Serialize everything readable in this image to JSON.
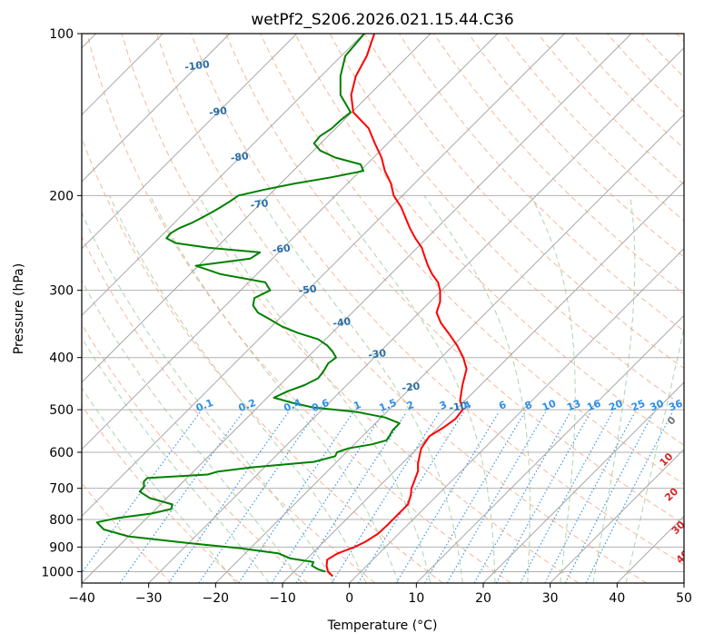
{
  "chart_data": {
    "type": "line",
    "title": "wetPf2_S206.2026.021.15.44.C36",
    "xlabel": "Temperature (°C)",
    "ylabel": "Pressure (hPa)",
    "xlim": [
      -40,
      50
    ],
    "ylim": [
      1050,
      100
    ],
    "y_scale": "log",
    "skew_t": true,
    "grid": true,
    "x_ticks": [
      -40,
      -30,
      -20,
      -10,
      0,
      10,
      20,
      30,
      40,
      50
    ],
    "y_ticks": [
      1000,
      900,
      800,
      700,
      600,
      500,
      400,
      300,
      200,
      100
    ],
    "isotherm_labels": [
      -100,
      -90,
      -80,
      -70,
      -60,
      -50,
      -40,
      -30,
      -20,
      -10
    ],
    "isotherm_label_pressure": [
      115,
      140,
      170,
      208,
      252,
      300,
      345,
      395,
      455,
      495
    ],
    "dry_adiabat_labels": [
      0,
      10,
      20,
      30,
      40
    ],
    "dry_adiabat_label_temps": [
      24,
      29,
      35,
      41,
      46
    ],
    "dry_adiabat_label_pressure": [
      525,
      620,
      720,
      830,
      940
    ],
    "mixing_ratio_labels": [
      "0.1",
      "0.2",
      "0.4",
      "0.6",
      "1",
      "1.5",
      "2",
      "3",
      "4",
      "6",
      "8",
      "10",
      "13",
      "16",
      "20",
      "25",
      "30",
      "36"
    ],
    "mixing_ratio_values": [
      0.1,
      0.2,
      0.4,
      0.6,
      1,
      1.5,
      2,
      3,
      4,
      6,
      8,
      10,
      13,
      16,
      20,
      25,
      30,
      36
    ],
    "series": [
      {
        "color": "#ff0000",
        "p": [
          1020,
          1000,
          975,
          950,
          925,
          900,
          880,
          850,
          820,
          800,
          780,
          750,
          720,
          700,
          680,
          650,
          630,
          610,
          590,
          560,
          540,
          520,
          500,
          480,
          450,
          420,
          400,
          380,
          360,
          345,
          330,
          315,
          300,
          290,
          280,
          270,
          260,
          250,
          240,
          230,
          220,
          210,
          200,
          190,
          180,
          170,
          160,
          150,
          140,
          130,
          120,
          110,
          100
        ],
        "t": [
          -3.5,
          -4.9,
          -6.0,
          -6.8,
          -6.2,
          -4.6,
          -3.8,
          -3.1,
          -3.0,
          -3.0,
          -3.0,
          -3.0,
          -4.0,
          -4.9,
          -5.5,
          -6.5,
          -7.6,
          -8.5,
          -9.4,
          -10.0,
          -9.2,
          -8.7,
          -9.0,
          -10.8,
          -12.7,
          -14.5,
          -16.7,
          -19.4,
          -22.6,
          -25.2,
          -27.4,
          -28.5,
          -30.2,
          -31.7,
          -33.8,
          -35.7,
          -37.5,
          -39.3,
          -41.7,
          -44.0,
          -46.2,
          -48.5,
          -51.3,
          -53.5,
          -56.3,
          -58.8,
          -61.9,
          -65.1,
          -69.8,
          -72.7,
          -74.8,
          -76.2,
          -78.4
        ]
      },
      {
        "color": "#008000",
        "p": [
          1000,
          990,
          975,
          960,
          945,
          925,
          905,
          885,
          860,
          835,
          810,
          795,
          780,
          765,
          750,
          730,
          710,
          695,
          680,
          670,
          660,
          652,
          640,
          625,
          610,
          600,
          590,
          580,
          570,
          560,
          545,
          530,
          517,
          505,
          495,
          485,
          475,
          462,
          450,
          437,
          425,
          410,
          400,
          390,
          380,
          370,
          360,
          350,
          340,
          330,
          320,
          310,
          300,
          290,
          280,
          270,
          262,
          255,
          250,
          245,
          240,
          235,
          230,
          225,
          220,
          215,
          210,
          205,
          200,
          195,
          190,
          185,
          180,
          175,
          170,
          165,
          160,
          155,
          150,
          145,
          140,
          130,
          120,
          110,
          100
        ],
        "td": [
          -5.3,
          -6.7,
          -8.2,
          -8.5,
          -12.5,
          -15.0,
          -21.4,
          -30.0,
          -40.0,
          -44.7,
          -46.8,
          -44.4,
          -40.0,
          -37.7,
          -38.2,
          -42.5,
          -45.0,
          -45.1,
          -45.9,
          -45.9,
          -37.4,
          -36.4,
          -31.9,
          -23.4,
          -21.1,
          -21.4,
          -20.3,
          -17.4,
          -15.8,
          -16.0,
          -16.4,
          -16.4,
          -19.4,
          -24.4,
          -31.8,
          -35.6,
          -39.0,
          -37.9,
          -36.3,
          -35.3,
          -35.5,
          -36.0,
          -35.7,
          -37.1,
          -38.8,
          -41.1,
          -45.1,
          -48.5,
          -51.2,
          -54.1,
          -55.9,
          -56.8,
          -55.6,
          -57.5,
          -65.4,
          -70.4,
          -63.3,
          -62.8,
          -71.2,
          -76.8,
          -78.9,
          -79.0,
          -78.5,
          -77.4,
          -76.7,
          -76.0,
          -75.4,
          -74.9,
          -74.5,
          -71.5,
          -67.9,
          -63.4,
          -59.5,
          -60.9,
          -65.7,
          -69.0,
          -71.0,
          -71.2,
          -70.6,
          -70.5,
          -70.2,
          -74.3,
          -77.1,
          -79.4,
          -79.9
        ]
      }
    ]
  }
}
